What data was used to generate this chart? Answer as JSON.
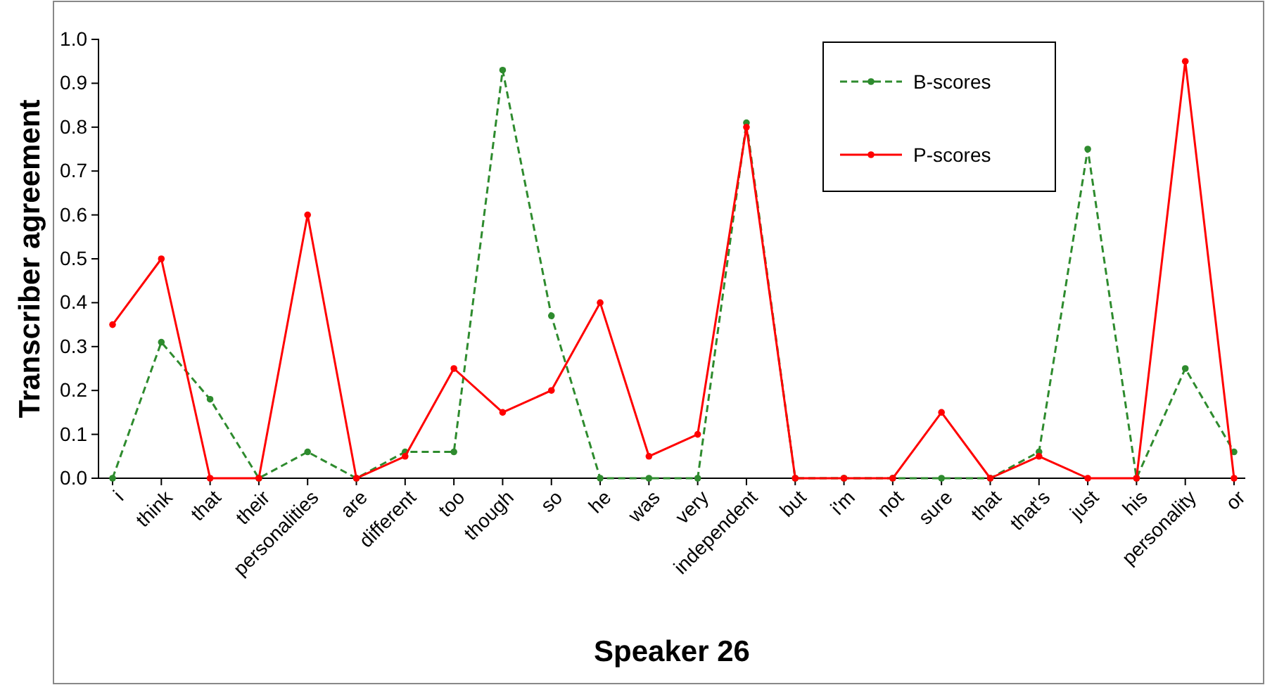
{
  "chart_data": {
    "type": "line",
    "xlabel": "Speaker 26",
    "ylabel": "Transcriber agreement",
    "categories": [
      "i",
      "think",
      "that",
      "their",
      "personalities",
      "are",
      "different",
      "too",
      "though",
      "so",
      "he",
      "was",
      "very",
      "independent",
      "but",
      "i'm",
      "not",
      "sure",
      "that",
      "that's",
      "just",
      "his",
      "personality",
      "or"
    ],
    "series": [
      {
        "name": "B-scores",
        "color": "#2e8b2e",
        "line_style": "dashed",
        "values": [
          0,
          0.31,
          0.18,
          0,
          0.06,
          0,
          0.06,
          0.06,
          0.93,
          0.37,
          0,
          0,
          0,
          0.81,
          0,
          0,
          0,
          0,
          0,
          0.06,
          0.75,
          0,
          0.25,
          0.06
        ]
      },
      {
        "name": "P-scores",
        "color": "#ff0000",
        "line_style": "solid",
        "values": [
          0.35,
          0.5,
          0,
          0,
          0.6,
          0,
          0.05,
          0.25,
          0.15,
          0.2,
          0.4,
          0.05,
          0.1,
          0.8,
          0,
          0,
          0,
          0.15,
          0,
          0.05,
          0,
          0,
          0.95,
          0
        ]
      }
    ],
    "ylim": [
      0,
      1
    ],
    "yticks": [
      {
        "value": 0,
        "label": "0.0"
      },
      {
        "value": 0.1,
        "label": "0.1"
      },
      {
        "value": 0.2,
        "label": "0.2"
      },
      {
        "value": 0.3,
        "label": "0.3"
      },
      {
        "value": 0.4,
        "label": "0.4"
      },
      {
        "value": 0.5,
        "label": "0.5"
      },
      {
        "value": 0.6,
        "label": "0.6"
      },
      {
        "value": 0.7,
        "label": "0.7"
      },
      {
        "value": 0.8,
        "label": "0.8"
      },
      {
        "value": 0.9,
        "label": "0.9"
      },
      {
        "value": 1,
        "label": "1.0"
      }
    ],
    "grid": false,
    "legend": "top right",
    "marker": "circle"
  }
}
